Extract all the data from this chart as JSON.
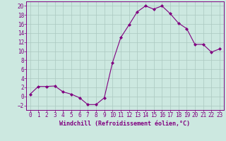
{
  "x": [
    0,
    1,
    2,
    3,
    4,
    5,
    6,
    7,
    8,
    9,
    10,
    11,
    12,
    13,
    14,
    15,
    16,
    17,
    18,
    19,
    20,
    21,
    22,
    23
  ],
  "y": [
    0.5,
    2.2,
    2.2,
    2.3,
    1.0,
    0.5,
    -0.3,
    -1.8,
    -1.8,
    -0.3,
    7.5,
    13.0,
    15.8,
    18.7,
    20.0,
    19.3,
    20.0,
    18.3,
    16.2,
    15.0,
    11.5,
    11.5,
    9.8,
    10.5
  ],
  "line_color": "#800080",
  "marker": "D",
  "marker_size": 2,
  "bg_color": "#cce8e0",
  "grid_color": "#aac8c0",
  "xlabel": "Windchill (Refroidissement éolien,°C)",
  "xlim": [
    -0.5,
    23.5
  ],
  "ylim": [
    -3,
    21
  ],
  "yticks": [
    -2,
    0,
    2,
    4,
    6,
    8,
    10,
    12,
    14,
    16,
    18,
    20
  ],
  "xticks": [
    0,
    1,
    2,
    3,
    4,
    5,
    6,
    7,
    8,
    9,
    10,
    11,
    12,
    13,
    14,
    15,
    16,
    17,
    18,
    19,
    20,
    21,
    22,
    23
  ],
  "tick_color": "#800080",
  "label_color": "#800080",
  "axis_color": "#800080",
  "tick_fontsize": 5.5,
  "xlabel_fontsize": 6.0
}
